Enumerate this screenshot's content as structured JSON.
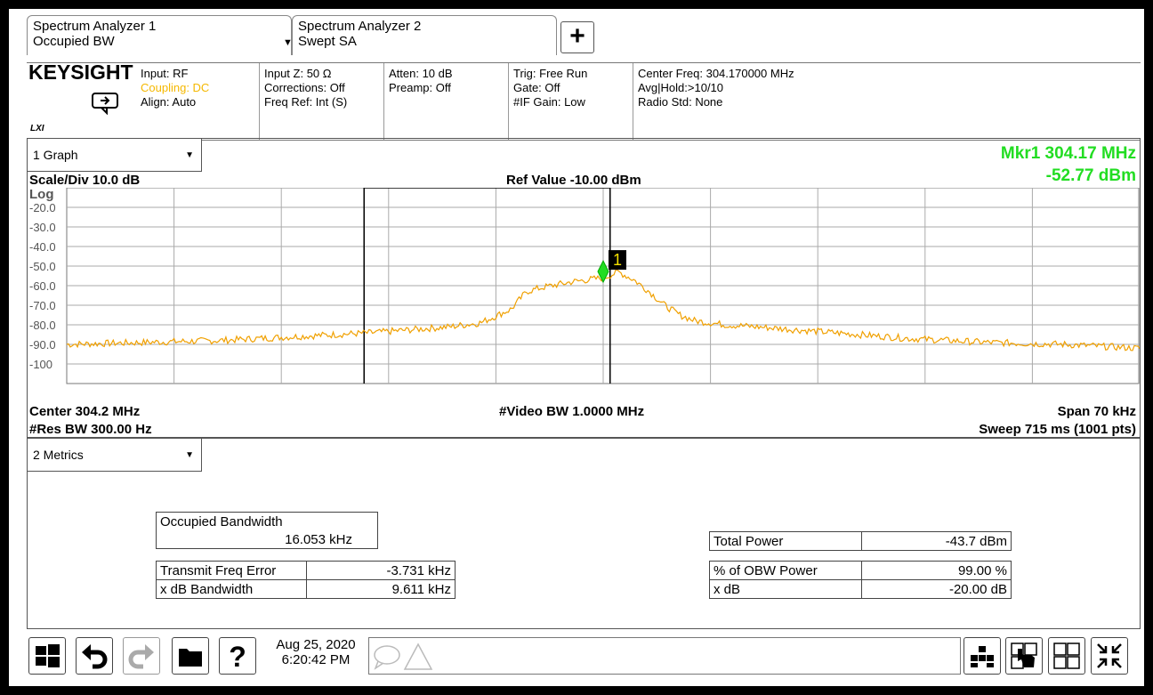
{
  "tabs": [
    {
      "line1": "Spectrum Analyzer 1",
      "line2": "Occupied BW"
    },
    {
      "line1": "Spectrum Analyzer 2",
      "line2": "Swept SA"
    }
  ],
  "add_tab_label": "+",
  "settings": {
    "brand": "KEYSIGHT",
    "lxi": "LXI",
    "input": "Input: RF",
    "coupling": "Coupling: DC",
    "align": "Align: Auto",
    "input_z": "Input Z: 50 Ω",
    "corrections": "Corrections: Off",
    "freq_ref": "Freq Ref: Int (S)",
    "atten": "Atten: 10 dB",
    "preamp": "Preamp: Off",
    "trig": "Trig: Free Run",
    "gate": "Gate: Off",
    "if_gain": "#IF Gain: Low",
    "center_freq": "Center Freq: 304.170000 MHz",
    "avg_hold": "Avg|Hold:>10/10",
    "radio_std": "Radio Std: None",
    "coupling_color": "#f5b800"
  },
  "graph_window": {
    "selector": "1 Graph",
    "marker_freq": "Mkr1  304.17 MHz",
    "marker_amp": "-52.77 dBm",
    "marker_color": "#22dd22",
    "scale_div": "Scale/Div 10.0 dB",
    "log_label": "Log",
    "ref_value": "Ref Value -10.00 dBm",
    "center": "Center 304.2 MHz",
    "video_bw": "#Video BW 1.0000 MHz",
    "span": "Span 70 kHz",
    "res_bw": "#Res BW 300.00 Hz",
    "sweep": "Sweep 715 ms (1001 pts)",
    "marker_number": "1",
    "trace_color": "#f0a000"
  },
  "chart_data": {
    "type": "line",
    "y_tick_labels": [
      "-20.0",
      "-30.0",
      "-40.0",
      "-50.0",
      "-60.0",
      "-70.0",
      "-80.0",
      "-90.0",
      "-100"
    ],
    "ylim": [
      -110,
      -10
    ],
    "xlim_khz": [
      -35,
      35
    ],
    "series": [
      {
        "x_khz": [
          -35,
          -30,
          -25,
          -20,
          -15,
          -10,
          -8,
          -6,
          -5,
          -4,
          -2,
          0,
          1,
          2,
          3,
          4,
          5,
          6,
          8,
          10,
          15,
          20,
          25,
          30,
          35
        ],
        "y_dbm": [
          -90,
          -89,
          -88,
          -86,
          -84,
          -81,
          -79,
          -72,
          -63,
          -61,
          -58,
          -56,
          -53,
          -57,
          -63,
          -70,
          -75,
          -78,
          -80,
          -81,
          -84,
          -87,
          -89,
          -90,
          -92
        ]
      }
    ],
    "obw_khz": [
      -15.6,
      0.45
    ],
    "marker": {
      "x_khz": 0.0,
      "y_dbm": -52.77
    }
  },
  "metrics_window": {
    "selector": "2 Metrics",
    "occupied_bandwidth_label": "Occupied Bandwidth",
    "occupied_bandwidth_value": "16.053 kHz",
    "left_rows": [
      {
        "label": "Transmit Freq Error",
        "value": "-3.731 kHz"
      },
      {
        "label": "x dB Bandwidth",
        "value": "9.611 kHz"
      }
    ],
    "total_power_label": "Total Power",
    "total_power_value": "-43.7 dBm",
    "right_rows": [
      {
        "label": "% of OBW Power",
        "value": "99.00 %"
      },
      {
        "label": "x dB",
        "value": "-20.00 dB"
      }
    ]
  },
  "taskbar": {
    "date": "Aug 25, 2020",
    "time": "6:20:42 PM"
  }
}
